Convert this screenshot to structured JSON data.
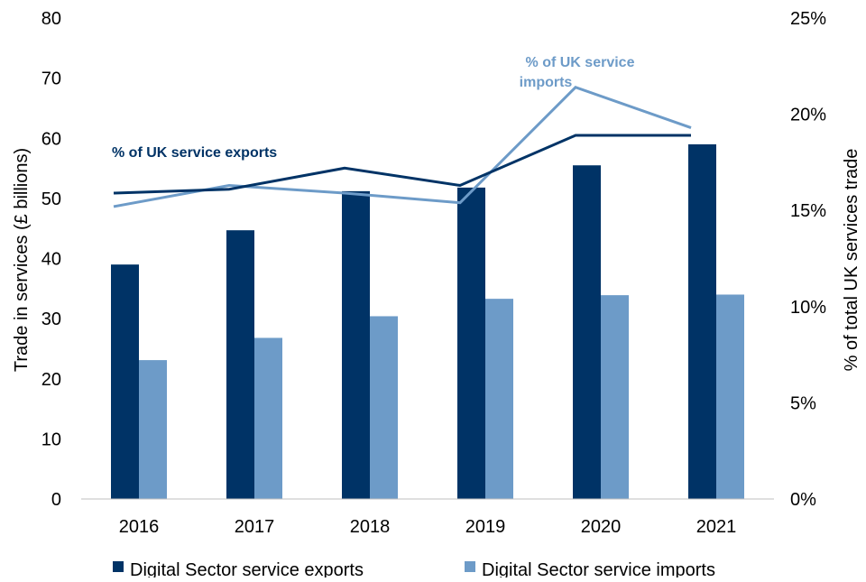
{
  "chart_data": {
    "type": "bar+line",
    "categories": [
      "2016",
      "2017",
      "2018",
      "2019",
      "2020",
      "2021"
    ],
    "ylabel": "Trade in services (£ billions)",
    "ylabel_right": "% of total UK services trade",
    "ylim": [
      0,
      80
    ],
    "yticks": [
      "0",
      "10",
      "20",
      "30",
      "40",
      "50",
      "60",
      "70",
      "80"
    ],
    "ylim_right": [
      0,
      25
    ],
    "yticks_right": [
      "0%",
      "5%",
      "10%",
      "15%",
      "20%",
      "25%"
    ],
    "grid": false,
    "legend_position": "bottom",
    "colors": {
      "exports": "#003366",
      "imports": "#6d9bc8"
    },
    "series": [
      {
        "name": "Digital Sector service exports",
        "type": "bar",
        "axis": "left",
        "values": [
          39,
          44.7,
          51.2,
          51.8,
          55.5,
          59
        ]
      },
      {
        "name": "Digital Sector service imports",
        "type": "bar",
        "axis": "left",
        "values": [
          23.1,
          26.8,
          30.4,
          33.3,
          33.9,
          34
        ]
      },
      {
        "name": "% of UK service exports",
        "type": "line",
        "axis": "right",
        "values": [
          15.9,
          16.1,
          17.2,
          16.3,
          18.9,
          18.9
        ]
      },
      {
        "name": "% of UK service imports",
        "type": "line",
        "axis": "right",
        "values": [
          15.2,
          16.3,
          15.9,
          15.4,
          21.4,
          19.3
        ]
      }
    ],
    "annotations": [
      "% of UK service exports",
      "% of UK service",
      "imports"
    ]
  }
}
